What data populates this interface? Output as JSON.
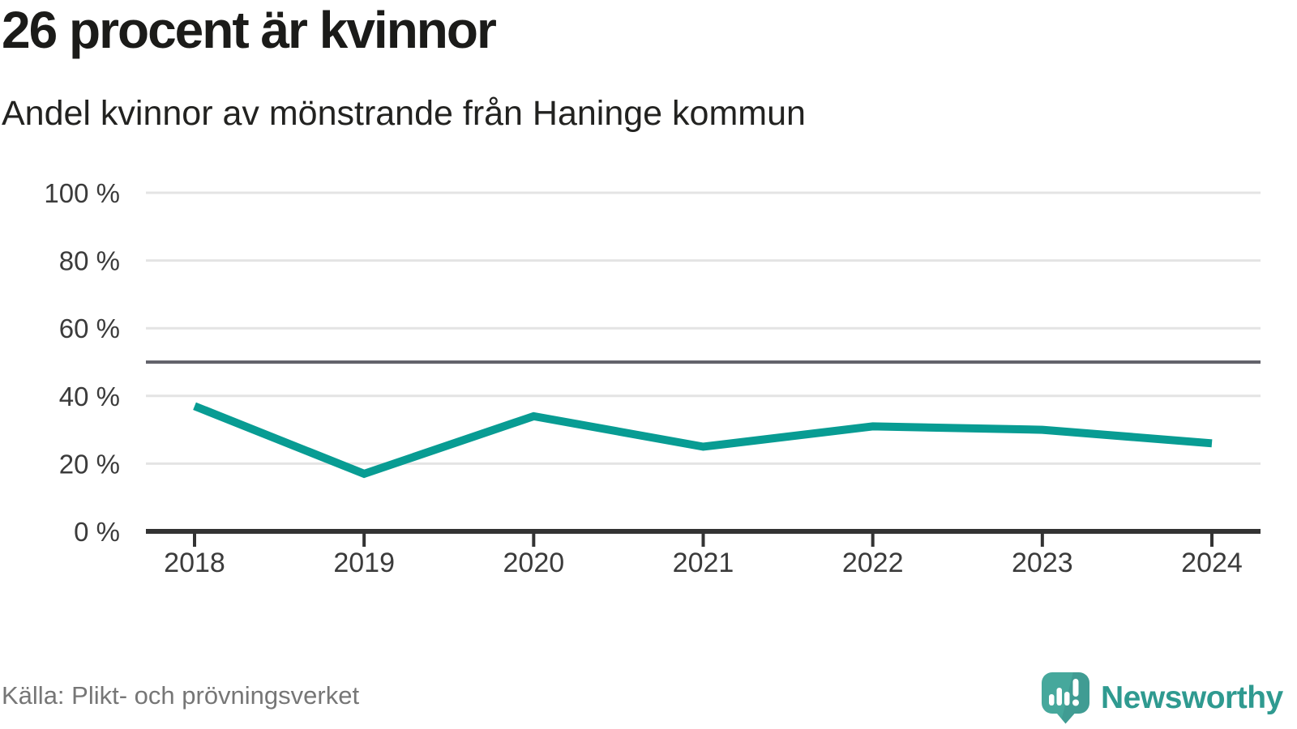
{
  "header": {
    "title": "26 procent är kvinnor",
    "subtitle": "Andel kvinnor av mönstrande från Haninge kommun"
  },
  "footer": {
    "source": "Källa: Plikt- och prövningsverket",
    "branding": {
      "wordmark": "Newsworthy",
      "icon": "newsworthy-speech-bubble-barchart-icon",
      "brand_color": "#2f9a90",
      "icon_color": "#46a89c"
    }
  },
  "chart_data": {
    "type": "line",
    "title": "26 procent är kvinnor",
    "subtitle": "Andel kvinnor av mönstrande från Haninge kommun",
    "categories": [
      "2018",
      "2019",
      "2020",
      "2021",
      "2022",
      "2023",
      "2024"
    ],
    "series": [
      {
        "name": "andel-kvinnor",
        "label": "Andel kvinnor av mönstrande",
        "color": "#089c93",
        "values": [
          37,
          17,
          34,
          25,
          31,
          30,
          26
        ]
      }
    ],
    "xlabel": "",
    "ylabel": "",
    "ylim": [
      0,
      100
    ],
    "yticks": [
      0,
      20,
      40,
      60,
      80,
      100
    ],
    "ytick_suffix": " %",
    "reference_line": {
      "value": 50,
      "color": "#63636b"
    },
    "grid": true,
    "legend": "none",
    "colors": {
      "grid": "#e4e4e4",
      "axis": "#333333",
      "tick_label": "#3b3b3b",
      "source_text": "#767676"
    }
  }
}
